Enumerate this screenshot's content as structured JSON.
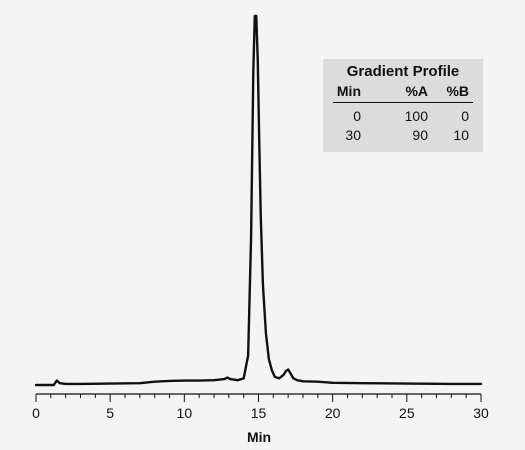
{
  "chart_data": {
    "type": "line",
    "title": "",
    "xlabel": "Min",
    "ylabel": "",
    "xlim": [
      0,
      30
    ],
    "ylim": [
      0,
      100
    ],
    "x_ticks": [
      0,
      5,
      10,
      15,
      20,
      25,
      30
    ],
    "y_axis_visible": false,
    "grid": false,
    "series": [
      {
        "color": "#111111",
        "x": [
          0,
          1.2,
          1.4,
          1.6,
          2,
          3,
          5,
          7,
          8,
          9,
          10,
          11,
          12,
          12.7,
          12.9,
          13.1,
          13.6,
          14.0,
          14.3,
          14.5,
          14.65,
          14.75,
          14.85,
          14.95,
          15.05,
          15.15,
          15.3,
          15.5,
          15.7,
          15.9,
          16.1,
          16.4,
          16.7,
          16.85,
          17.0,
          17.15,
          17.35,
          17.6,
          18.0,
          19.0,
          20.0,
          22.0,
          25.0,
          28.0,
          30.0
        ],
        "y": [
          0.0,
          0.0,
          1.2,
          0.5,
          0.3,
          0.3,
          0.4,
          0.5,
          0.9,
          1.1,
          1.2,
          1.2,
          1.3,
          1.6,
          2.0,
          1.6,
          1.3,
          1.8,
          8,
          40,
          85,
          100,
          100,
          88,
          66,
          46,
          27,
          14,
          7,
          4,
          2.2,
          1.8,
          2.8,
          3.8,
          4.2,
          3.2,
          1.8,
          1.3,
          1.0,
          0.9,
          0.6,
          0.5,
          0.4,
          0.3,
          0.3
        ]
      }
    ]
  },
  "gradient_table": {
    "title": "Gradient Profile",
    "headers": [
      "Min",
      "%A",
      "%B"
    ],
    "rows": [
      [
        "0",
        "100",
        "0"
      ],
      [
        "30",
        "90",
        "10"
      ]
    ]
  }
}
